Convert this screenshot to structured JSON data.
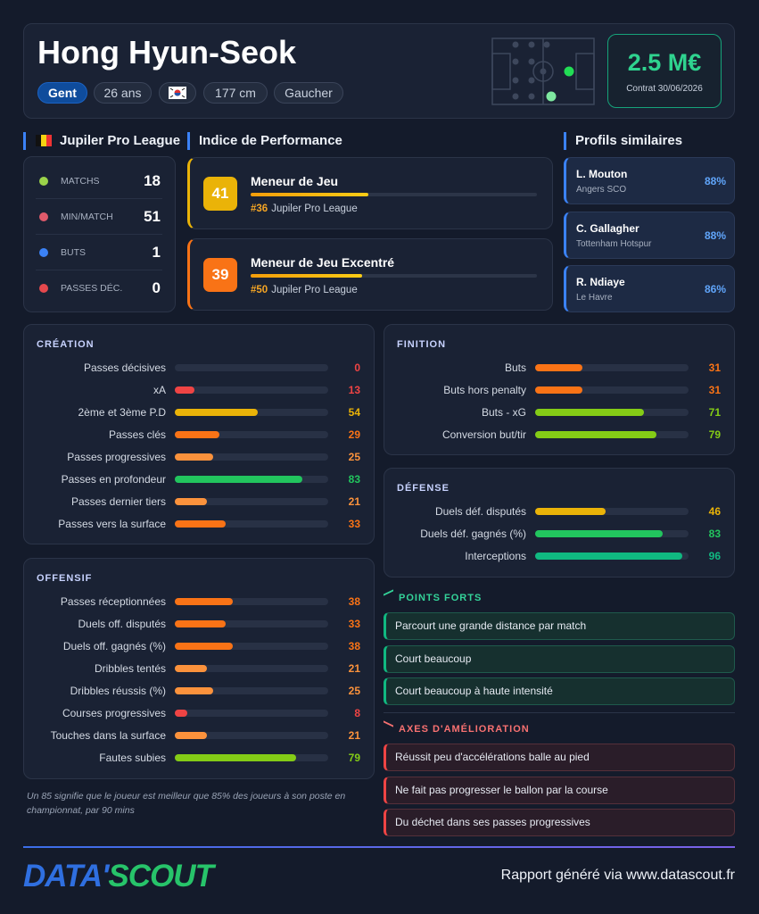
{
  "header": {
    "name": "Hong Hyun-Seok",
    "club": "Gent",
    "tags": [
      "26 ans",
      "177 cm",
      "Gaucher"
    ],
    "market_value": "2.5 M€",
    "contract": "Contrat 30/06/2026"
  },
  "league": {
    "name": "Jupiler Pro League",
    "stats": [
      {
        "label": "MATCHS",
        "value": 18
      },
      {
        "label": "MIN/MATCH",
        "value": 51
      },
      {
        "label": "BUTS",
        "value": 1
      },
      {
        "label": "PASSES DÉC.",
        "value": 0
      }
    ]
  },
  "performance": {
    "title": "Indice de Performance",
    "roles": [
      {
        "score": 41,
        "role": "Meneur de Jeu",
        "rank": "#36",
        "league": "Jupiler Pro League"
      },
      {
        "score": 39,
        "role": "Meneur de Jeu Excentré",
        "rank": "#50",
        "league": "Jupiler Pro League"
      }
    ]
  },
  "similar": {
    "title": "Profils similaires",
    "players": [
      {
        "name": "L. Mouton",
        "club": "Angers SCO",
        "match": "88%"
      },
      {
        "name": "C. Gallagher",
        "club": "Tottenham Hotspur",
        "match": "88%"
      },
      {
        "name": "R. Ndiaye",
        "club": "Le Havre",
        "match": "86%"
      }
    ]
  },
  "sections": [
    {
      "title": "CRÉATION",
      "rows": [
        {
          "label": "Passes décisives",
          "value": 0
        },
        {
          "label": "xA",
          "value": 13
        },
        {
          "label": "2ème et 3ème P.D",
          "value": 54
        },
        {
          "label": "Passes clés",
          "value": 29
        },
        {
          "label": "Passes progressives",
          "value": 25
        },
        {
          "label": "Passes en profondeur",
          "value": 83
        },
        {
          "label": "Passes dernier tiers",
          "value": 21
        },
        {
          "label": "Passes vers la surface",
          "value": 33
        }
      ]
    },
    {
      "title": "FINITION",
      "rows": [
        {
          "label": "Buts",
          "value": 31
        },
        {
          "label": "Buts hors penalty",
          "value": 31
        },
        {
          "label": "Buts - xG",
          "value": 71
        },
        {
          "label": "Conversion but/tir",
          "value": 79
        }
      ]
    },
    {
      "title": "DÉFENSE",
      "rows": [
        {
          "label": "Duels déf. disputés",
          "value": 46
        },
        {
          "label": "Duels déf. gagnés (%)",
          "value": 83
        },
        {
          "label": "Interceptions",
          "value": 96
        }
      ]
    },
    {
      "title": "OFFENSIF",
      "rows": [
        {
          "label": "Passes réceptionnées",
          "value": 38
        },
        {
          "label": "Duels off. disputés",
          "value": 33
        },
        {
          "label": "Duels off. gagnés (%)",
          "value": 38
        },
        {
          "label": "Dribbles tentés",
          "value": 21
        },
        {
          "label": "Dribbles réussis (%)",
          "value": 25
        },
        {
          "label": "Courses progressives",
          "value": 8
        },
        {
          "label": "Touches dans la surface",
          "value": 21
        },
        {
          "label": "Fautes subies",
          "value": 79
        }
      ]
    }
  ],
  "note": "Un 85 signifie que le joueur est meilleur que 85% des joueurs à son poste en championnat, par 90 mins",
  "strengths": {
    "title": "POINTS FORTS",
    "items": [
      "Parcourt une grande distance par match",
      "Court beaucoup",
      "Court beaucoup à haute intensité"
    ]
  },
  "improvements": {
    "title": "AXES D'AMÉLIORATION",
    "items": [
      "Réussit peu d'accélérations balle au pied",
      "Ne fait pas progresser le ballon par la course",
      "Du déchet dans ses passes progressives"
    ]
  },
  "footer": {
    "logo": [
      "DATA'",
      "SCOUT"
    ],
    "text": "Rapport généré via www.datascout.fr"
  }
}
